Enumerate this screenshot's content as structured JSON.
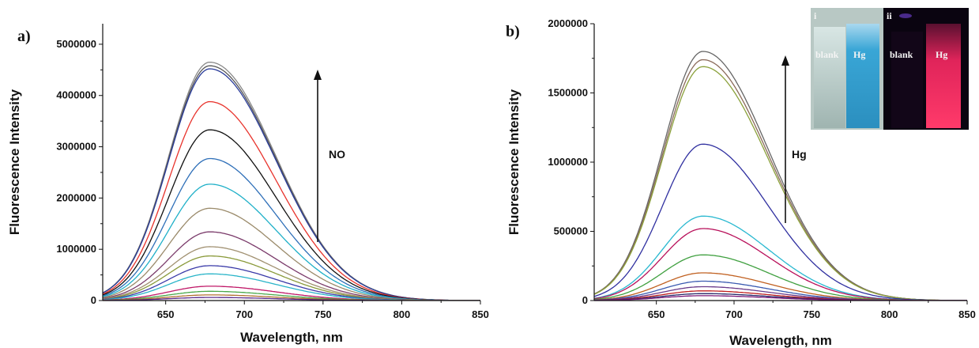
{
  "chart_data": [
    {
      "type": "line",
      "panel_label": "a)",
      "xlabel": "Wavelength, nm",
      "ylabel": "Fluorescence Intensity",
      "xlim": [
        610,
        850
      ],
      "ylim": [
        0,
        5400000
      ],
      "xticks": [
        650,
        700,
        750,
        800,
        850
      ],
      "xtick_labels": [
        "650",
        "700",
        "750",
        "800",
        "850"
      ],
      "yticks": [
        0,
        1000000,
        2000000,
        3000000,
        4000000,
        5000000
      ],
      "ytick_labels": [
        "0",
        "1000000",
        "2000000",
        "3000000",
        "4000000",
        "5000000"
      ],
      "peak_wavelength": 678,
      "series": [
        {
          "peak": 4650000,
          "color": "#8a8a8a"
        },
        {
          "peak": 4580000,
          "color": "#555555"
        },
        {
          "peak": 4520000,
          "color": "#2a3c9a"
        },
        {
          "peak": 3880000,
          "color": "#e8332c"
        },
        {
          "peak": 3330000,
          "color": "#111111"
        },
        {
          "peak": 2770000,
          "color": "#2e6fb8"
        },
        {
          "peak": 2270000,
          "color": "#1fb0c8"
        },
        {
          "peak": 1800000,
          "color": "#9a8a6a"
        },
        {
          "peak": 1340000,
          "color": "#7a3a6a"
        },
        {
          "peak": 1050000,
          "color": "#a09070"
        },
        {
          "peak": 870000,
          "color": "#8a9a3a"
        },
        {
          "peak": 680000,
          "color": "#3a3aa8"
        },
        {
          "peak": 520000,
          "color": "#28b4c8"
        },
        {
          "peak": 280000,
          "color": "#c01868"
        },
        {
          "peak": 180000,
          "color": "#4aa84a"
        },
        {
          "peak": 110000,
          "color": "#b07030"
        },
        {
          "peak": 60000,
          "color": "#5a2a8a"
        }
      ],
      "annotation": {
        "text": "NO",
        "arrow": "up"
      }
    },
    {
      "type": "line",
      "panel_label": "b)",
      "xlabel": "Wavelength, nm",
      "ylabel": "Fluorescence Intensity",
      "xlim": [
        610,
        850
      ],
      "ylim": [
        0,
        2000000
      ],
      "xticks": [
        650,
        700,
        750,
        800,
        850
      ],
      "xtick_labels": [
        "650",
        "700",
        "750",
        "800",
        "850"
      ],
      "yticks": [
        0,
        500000,
        1000000,
        1500000,
        2000000
      ],
      "ytick_labels": [
        "0",
        "500000",
        "1000000",
        "1500000",
        "2000000"
      ],
      "peak_wavelength": 680,
      "series": [
        {
          "peak": 1800000,
          "color": "#666666"
        },
        {
          "peak": 1740000,
          "color": "#8a6a5a"
        },
        {
          "peak": 1690000,
          "color": "#8aa03a"
        },
        {
          "peak": 1130000,
          "color": "#3030a0"
        },
        {
          "peak": 610000,
          "color": "#28b8d0"
        },
        {
          "peak": 520000,
          "color": "#b8105a"
        },
        {
          "peak": 330000,
          "color": "#40a040"
        },
        {
          "peak": 200000,
          "color": "#c06020"
        },
        {
          "peak": 140000,
          "color": "#3a5ab0"
        },
        {
          "peak": 100000,
          "color": "#6a3a8a"
        },
        {
          "peak": 70000,
          "color": "#c02020"
        },
        {
          "peak": 50000,
          "color": "#2a2a6a"
        },
        {
          "peak": 35000,
          "color": "#7a1a7a"
        }
      ],
      "annotation": {
        "text": "Hg",
        "arrow": "up"
      },
      "inset": {
        "left": {
          "roman": "i",
          "labels": [
            "blank",
            "Hg"
          ]
        },
        "right": {
          "roman": "ii",
          "labels": [
            "blank",
            "Hg"
          ]
        }
      }
    }
  ]
}
